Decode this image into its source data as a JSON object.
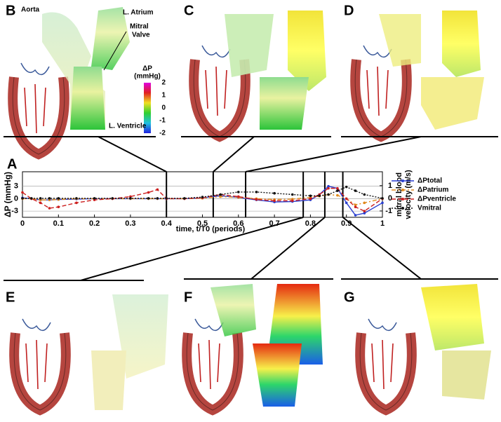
{
  "panels": {
    "A": "A",
    "B": "B",
    "C": "C",
    "D": "D",
    "E": "E",
    "F": "F",
    "G": "G"
  },
  "annotations": {
    "aorta": "Aorta",
    "atrium": "L. Atrium",
    "valve": [
      "Mitral",
      "Valve"
    ],
    "ventricle": "L. Ventricle"
  },
  "colorbar": {
    "title": [
      "ΔP",
      "(mmHg)"
    ],
    "ticks": [
      2,
      1,
      0,
      -1,
      -2
    ]
  },
  "chart_data": {
    "type": "line",
    "x_label": "time, t/T0 (periods)",
    "y_label": "ΔP (mmHg)",
    "y2_label": [
      "mitral blood",
      "velocity (m/s)"
    ],
    "x": [
      0,
      0.025,
      0.05,
      0.075,
      0.1,
      0.15,
      0.2,
      0.25,
      0.3,
      0.35,
      0.375,
      0.4,
      0.45,
      0.5,
      0.55,
      0.6,
      0.65,
      0.7,
      0.75,
      0.8,
      0.825,
      0.85,
      0.875,
      0.9,
      0.925,
      0.95,
      1
    ],
    "xlim": [
      0,
      1
    ],
    "xticks": [
      0,
      0.1,
      0.2,
      0.3,
      0.4,
      0.5,
      0.6,
      0.7,
      0.8,
      0.9,
      1
    ],
    "ylim": [
      -4.5,
      6.5
    ],
    "yticks": [
      3,
      0,
      -3
    ],
    "y2lim": [
      -1.5,
      2.1
    ],
    "y2ticks": [
      1,
      0,
      -1
    ],
    "grid": true,
    "time_markers": [
      0.4,
      0.53,
      0.62,
      0.78,
      0.84,
      0.89
    ],
    "series": [
      {
        "name": "ΔPtotal",
        "color": "#2a3fd0",
        "dash": "",
        "values": [
          0.2,
          0,
          -0.3,
          -0.3,
          -0.2,
          -0.1,
          0,
          0,
          0,
          0,
          0,
          0,
          0,
          0.2,
          0.7,
          0.3,
          -0.3,
          -0.8,
          -0.7,
          -0.3,
          1,
          3,
          2.5,
          -1,
          -4,
          -3.5,
          -1
        ]
      },
      {
        "name": "ΔPatrium",
        "color": "#e08a1e",
        "dash": "6 3 2 3",
        "values": [
          0,
          0,
          -0.3,
          -0.3,
          -0.2,
          0,
          0,
          0,
          0,
          0,
          0,
          0,
          0,
          0.1,
          0.5,
          0.3,
          0,
          -0.2,
          -0.1,
          0.3,
          0.6,
          1,
          0.8,
          0,
          -1.5,
          -1,
          0
        ]
      },
      {
        "name": "ΔPventricle",
        "color": "#cc1f1f",
        "dash": "6 3",
        "values": [
          1.5,
          0,
          -1,
          -2.3,
          -2,
          -1,
          -0.3,
          0,
          0.5,
          1.5,
          2.2,
          0,
          0,
          0.2,
          1,
          0.5,
          -0.2,
          -0.5,
          -0.5,
          0,
          1,
          2.5,
          2.5,
          0,
          -2,
          -3,
          0
        ]
      },
      {
        "name": "Vmitral",
        "color": "#111111",
        "dash": "2 2",
        "axis": "y2",
        "values": [
          0,
          0,
          0,
          0,
          0,
          0,
          0,
          0,
          0,
          0,
          0,
          0,
          0,
          0.1,
          0.3,
          0.5,
          0.5,
          0.4,
          0.3,
          0.2,
          0.2,
          0.3,
          0.6,
          0.9,
          0.6,
          0.3,
          0
        ]
      }
    ]
  }
}
